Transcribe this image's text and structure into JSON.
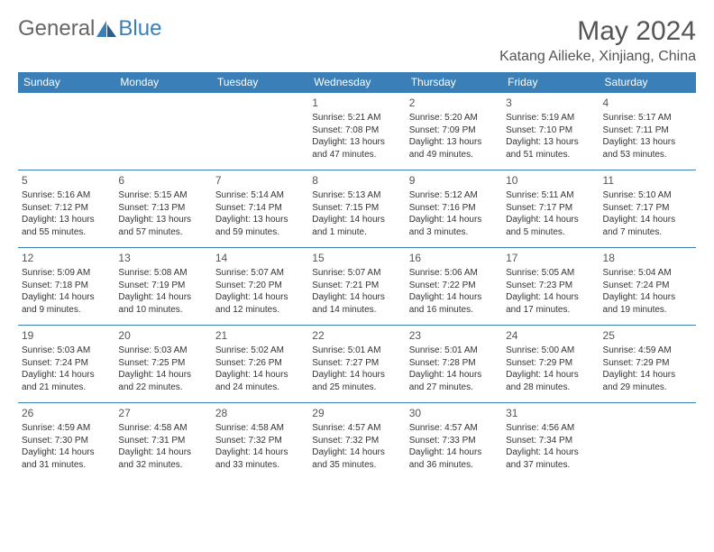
{
  "logo": {
    "general": "General",
    "blue": "Blue"
  },
  "title": "May 2024",
  "subtitle": "Katang Ailieke, Xinjiang, China",
  "header_bg": "#3b7fb8",
  "border_color": "#3b7fb8",
  "weekdays": [
    "Sunday",
    "Monday",
    "Tuesday",
    "Wednesday",
    "Thursday",
    "Friday",
    "Saturday"
  ],
  "first_weekday_index": 3,
  "days": [
    {
      "n": 1,
      "sunrise": "5:21 AM",
      "sunset": "7:08 PM",
      "daylight": "13 hours and 47 minutes."
    },
    {
      "n": 2,
      "sunrise": "5:20 AM",
      "sunset": "7:09 PM",
      "daylight": "13 hours and 49 minutes."
    },
    {
      "n": 3,
      "sunrise": "5:19 AM",
      "sunset": "7:10 PM",
      "daylight": "13 hours and 51 minutes."
    },
    {
      "n": 4,
      "sunrise": "5:17 AM",
      "sunset": "7:11 PM",
      "daylight": "13 hours and 53 minutes."
    },
    {
      "n": 5,
      "sunrise": "5:16 AM",
      "sunset": "7:12 PM",
      "daylight": "13 hours and 55 minutes."
    },
    {
      "n": 6,
      "sunrise": "5:15 AM",
      "sunset": "7:13 PM",
      "daylight": "13 hours and 57 minutes."
    },
    {
      "n": 7,
      "sunrise": "5:14 AM",
      "sunset": "7:14 PM",
      "daylight": "13 hours and 59 minutes."
    },
    {
      "n": 8,
      "sunrise": "5:13 AM",
      "sunset": "7:15 PM",
      "daylight": "14 hours and 1 minute."
    },
    {
      "n": 9,
      "sunrise": "5:12 AM",
      "sunset": "7:16 PM",
      "daylight": "14 hours and 3 minutes."
    },
    {
      "n": 10,
      "sunrise": "5:11 AM",
      "sunset": "7:17 PM",
      "daylight": "14 hours and 5 minutes."
    },
    {
      "n": 11,
      "sunrise": "5:10 AM",
      "sunset": "7:17 PM",
      "daylight": "14 hours and 7 minutes."
    },
    {
      "n": 12,
      "sunrise": "5:09 AM",
      "sunset": "7:18 PM",
      "daylight": "14 hours and 9 minutes."
    },
    {
      "n": 13,
      "sunrise": "5:08 AM",
      "sunset": "7:19 PM",
      "daylight": "14 hours and 10 minutes."
    },
    {
      "n": 14,
      "sunrise": "5:07 AM",
      "sunset": "7:20 PM",
      "daylight": "14 hours and 12 minutes."
    },
    {
      "n": 15,
      "sunrise": "5:07 AM",
      "sunset": "7:21 PM",
      "daylight": "14 hours and 14 minutes."
    },
    {
      "n": 16,
      "sunrise": "5:06 AM",
      "sunset": "7:22 PM",
      "daylight": "14 hours and 16 minutes."
    },
    {
      "n": 17,
      "sunrise": "5:05 AM",
      "sunset": "7:23 PM",
      "daylight": "14 hours and 17 minutes."
    },
    {
      "n": 18,
      "sunrise": "5:04 AM",
      "sunset": "7:24 PM",
      "daylight": "14 hours and 19 minutes."
    },
    {
      "n": 19,
      "sunrise": "5:03 AM",
      "sunset": "7:24 PM",
      "daylight": "14 hours and 21 minutes."
    },
    {
      "n": 20,
      "sunrise": "5:03 AM",
      "sunset": "7:25 PM",
      "daylight": "14 hours and 22 minutes."
    },
    {
      "n": 21,
      "sunrise": "5:02 AM",
      "sunset": "7:26 PM",
      "daylight": "14 hours and 24 minutes."
    },
    {
      "n": 22,
      "sunrise": "5:01 AM",
      "sunset": "7:27 PM",
      "daylight": "14 hours and 25 minutes."
    },
    {
      "n": 23,
      "sunrise": "5:01 AM",
      "sunset": "7:28 PM",
      "daylight": "14 hours and 27 minutes."
    },
    {
      "n": 24,
      "sunrise": "5:00 AM",
      "sunset": "7:29 PM",
      "daylight": "14 hours and 28 minutes."
    },
    {
      "n": 25,
      "sunrise": "4:59 AM",
      "sunset": "7:29 PM",
      "daylight": "14 hours and 29 minutes."
    },
    {
      "n": 26,
      "sunrise": "4:59 AM",
      "sunset": "7:30 PM",
      "daylight": "14 hours and 31 minutes."
    },
    {
      "n": 27,
      "sunrise": "4:58 AM",
      "sunset": "7:31 PM",
      "daylight": "14 hours and 32 minutes."
    },
    {
      "n": 28,
      "sunrise": "4:58 AM",
      "sunset": "7:32 PM",
      "daylight": "14 hours and 33 minutes."
    },
    {
      "n": 29,
      "sunrise": "4:57 AM",
      "sunset": "7:32 PM",
      "daylight": "14 hours and 35 minutes."
    },
    {
      "n": 30,
      "sunrise": "4:57 AM",
      "sunset": "7:33 PM",
      "daylight": "14 hours and 36 minutes."
    },
    {
      "n": 31,
      "sunrise": "4:56 AM",
      "sunset": "7:34 PM",
      "daylight": "14 hours and 37 minutes."
    }
  ]
}
